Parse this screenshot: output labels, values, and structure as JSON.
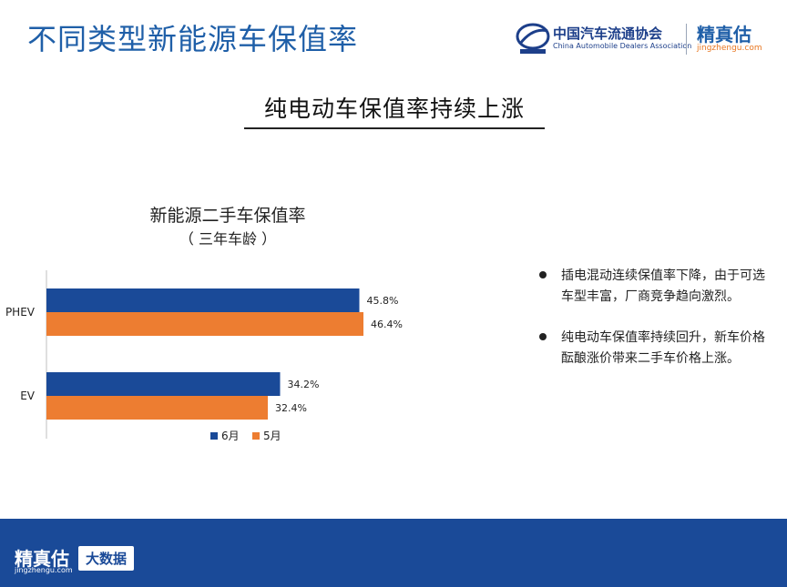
{
  "header": {
    "title": "不同类型新能源车保值率",
    "cada_cn": "中国汽车流通协会",
    "cada_en": "China Automobile Dealers Association",
    "brand": "精真估",
    "brand_url": "jingzhengu.com"
  },
  "slide": {
    "heading": "纯电动车保值率持续上涨"
  },
  "chart_data": {
    "type": "bar",
    "orientation": "horizontal",
    "title": "新能源二手车保值率",
    "subtitle": "（ 三年车龄 ）",
    "categories": [
      "PHEV",
      "EV"
    ],
    "series": [
      {
        "name": "6月",
        "color": "#1a4a98",
        "values": [
          45.8,
          34.2
        ],
        "labels": [
          "45.8%",
          "34.2%"
        ]
      },
      {
        "name": "5月",
        "color": "#ed7d31",
        "values": [
          46.4,
          32.4
        ],
        "labels": [
          "46.4%",
          "32.4%"
        ]
      }
    ],
    "xlim": [
      0,
      60
    ],
    "grid": false,
    "legend": "bottom"
  },
  "notes": [
    "插电混动连续保值率下降，由于可选车型丰富，厂商竞争趋向激烈。",
    "纯电动车保值率持续回升，新车价格酝酿涨价带来二手车价格上涨。"
  ],
  "footer": {
    "brand": "精真估",
    "url": "jingzhengu.com",
    "badge": "大数据"
  }
}
